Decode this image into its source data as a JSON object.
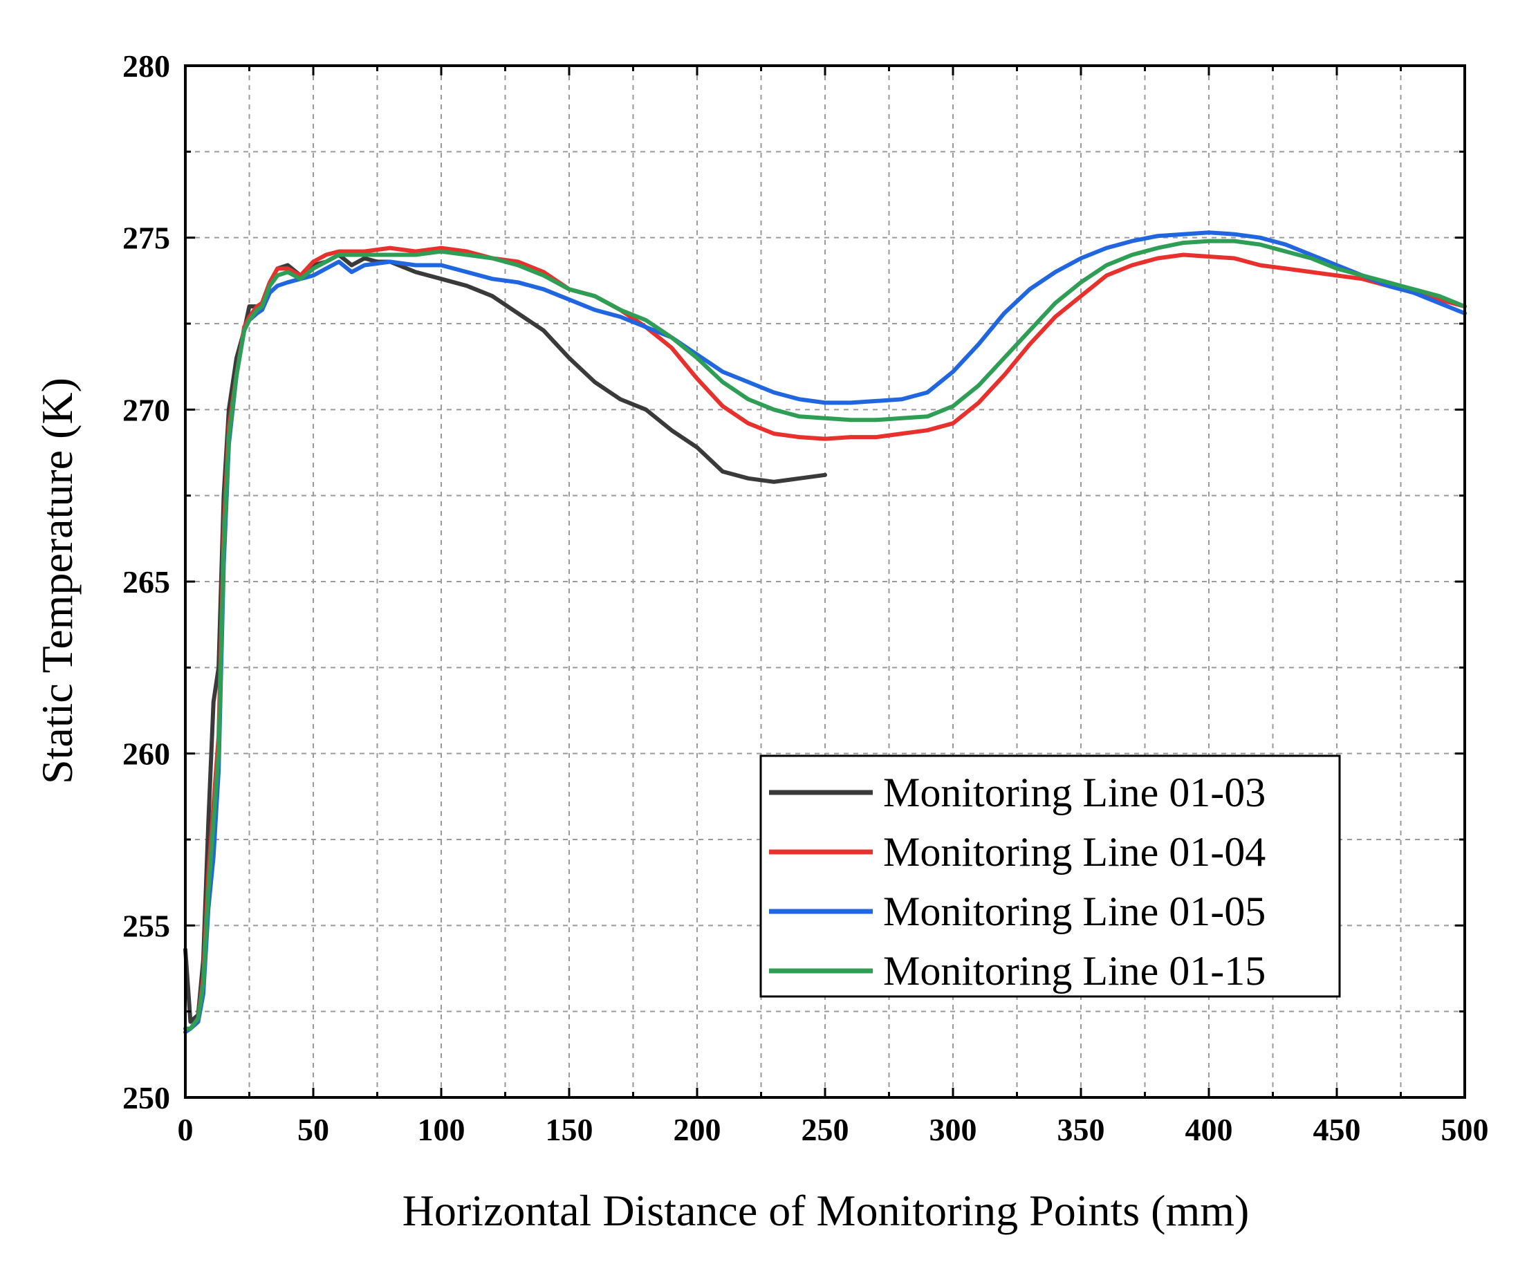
{
  "chart_data": {
    "type": "line",
    "title": "",
    "xlabel": "Horizontal Distance of Monitoring Points (mm)",
    "ylabel": "Static Temperature (K)",
    "xlim": [
      0,
      500
    ],
    "ylim": [
      250,
      280
    ],
    "xticks": [
      0,
      50,
      100,
      150,
      200,
      250,
      300,
      350,
      400,
      450,
      500
    ],
    "yticks": [
      250,
      255,
      260,
      265,
      270,
      275,
      280
    ],
    "xtick_labels": [
      "0",
      "50",
      "100",
      "150",
      "200",
      "250",
      "300",
      "350",
      "400",
      "450",
      "500"
    ],
    "ytick_labels": [
      "250",
      "255",
      "260",
      "265",
      "270",
      "275",
      "280"
    ],
    "grid": true,
    "legend_position": "lower-right",
    "series": [
      {
        "name": "Monitoring Line 01-03",
        "color": "#3a3a3a",
        "x": [
          0,
          2,
          5,
          7,
          9,
          11,
          13,
          15,
          17,
          20,
          23,
          25,
          28,
          30,
          33,
          36,
          40,
          45,
          50,
          55,
          60,
          65,
          70,
          75,
          80,
          90,
          100,
          110,
          120,
          130,
          140,
          150,
          160,
          170,
          180,
          190,
          200,
          210,
          220,
          230,
          240,
          250
        ],
        "values": [
          254.3,
          252.2,
          252.4,
          254.0,
          258.0,
          261.5,
          262.5,
          267.5,
          270.0,
          271.5,
          272.3,
          273.0,
          273.0,
          273.1,
          273.7,
          274.1,
          274.2,
          273.9,
          274.2,
          274.3,
          274.5,
          274.2,
          274.4,
          274.3,
          274.3,
          274.0,
          273.8,
          273.6,
          273.3,
          272.8,
          272.3,
          271.5,
          270.8,
          270.3,
          270.0,
          269.4,
          268.9,
          268.2,
          268.0,
          267.9,
          268.0,
          268.1
        ]
      },
      {
        "name": "Monitoring Line 01-04",
        "color": "#e8302c",
        "x": [
          0,
          2,
          5,
          7,
          9,
          11,
          13,
          15,
          17,
          20,
          23,
          25,
          28,
          30,
          33,
          36,
          40,
          45,
          50,
          55,
          60,
          70,
          80,
          90,
          100,
          110,
          120,
          130,
          140,
          150,
          160,
          170,
          180,
          190,
          200,
          210,
          220,
          230,
          240,
          250,
          260,
          270,
          280,
          290,
          300,
          310,
          320,
          330,
          340,
          350,
          360,
          370,
          380,
          390,
          400,
          410,
          420,
          430,
          440,
          450,
          460,
          470,
          480,
          490,
          500
        ],
        "values": [
          252.0,
          252.0,
          252.3,
          253.5,
          256.5,
          258.5,
          260.5,
          266.5,
          269.5,
          271.0,
          272.4,
          272.7,
          273.0,
          273.1,
          273.7,
          274.1,
          274.1,
          273.9,
          274.3,
          274.5,
          274.6,
          274.6,
          274.7,
          274.6,
          274.7,
          274.6,
          274.4,
          274.3,
          274.0,
          273.5,
          273.3,
          272.9,
          272.4,
          271.8,
          270.9,
          270.1,
          269.6,
          269.3,
          269.2,
          269.15,
          269.2,
          269.2,
          269.3,
          269.4,
          269.6,
          270.2,
          271.0,
          271.9,
          272.7,
          273.3,
          273.9,
          274.2,
          274.4,
          274.5,
          274.45,
          274.4,
          274.2,
          274.1,
          274.0,
          273.9,
          273.8,
          273.6,
          273.4,
          273.2,
          273.0
        ]
      },
      {
        "name": "Monitoring Line 01-05",
        "color": "#1f66e0",
        "x": [
          0,
          2,
          5,
          7,
          9,
          11,
          13,
          15,
          17,
          20,
          23,
          25,
          28,
          30,
          33,
          36,
          40,
          45,
          50,
          55,
          60,
          65,
          70,
          80,
          90,
          100,
          110,
          120,
          130,
          140,
          150,
          160,
          170,
          180,
          190,
          200,
          210,
          220,
          230,
          240,
          250,
          260,
          270,
          280,
          290,
          300,
          310,
          320,
          330,
          340,
          350,
          360,
          370,
          380,
          390,
          400,
          410,
          420,
          430,
          440,
          450,
          460,
          470,
          480,
          490,
          500
        ],
        "values": [
          251.9,
          252.0,
          252.2,
          253.0,
          255.5,
          257.0,
          259.5,
          265.5,
          269.0,
          271.0,
          272.3,
          272.6,
          272.8,
          272.9,
          273.4,
          273.6,
          273.7,
          273.8,
          273.9,
          274.1,
          274.3,
          274.0,
          274.2,
          274.3,
          274.2,
          274.2,
          274.0,
          273.8,
          273.7,
          273.5,
          273.2,
          272.9,
          272.7,
          272.4,
          272.1,
          271.6,
          271.1,
          270.8,
          270.5,
          270.3,
          270.2,
          270.2,
          270.25,
          270.3,
          270.5,
          271.1,
          271.9,
          272.8,
          273.5,
          274.0,
          274.4,
          274.7,
          274.9,
          275.05,
          275.1,
          275.15,
          275.1,
          275.0,
          274.8,
          274.5,
          274.2,
          273.9,
          273.6,
          273.4,
          273.1,
          272.8
        ]
      },
      {
        "name": "Monitoring Line 01-15",
        "color": "#2f9e55",
        "x": [
          0,
          2,
          5,
          7,
          9,
          11,
          13,
          15,
          17,
          20,
          23,
          25,
          28,
          30,
          33,
          36,
          40,
          45,
          50,
          55,
          60,
          70,
          80,
          90,
          100,
          110,
          120,
          130,
          140,
          150,
          160,
          170,
          180,
          190,
          200,
          210,
          220,
          230,
          240,
          250,
          260,
          270,
          280,
          290,
          300,
          310,
          320,
          330,
          340,
          350,
          360,
          370,
          380,
          390,
          400,
          410,
          420,
          430,
          440,
          450,
          460,
          470,
          480,
          490,
          500
        ],
        "values": [
          252.0,
          252.0,
          252.3,
          253.3,
          256.0,
          258.0,
          260.0,
          266.0,
          269.2,
          271.0,
          272.3,
          272.6,
          272.9,
          273.0,
          273.6,
          273.9,
          274.0,
          273.8,
          274.1,
          274.3,
          274.5,
          274.5,
          274.5,
          274.5,
          274.6,
          274.5,
          274.4,
          274.2,
          273.9,
          273.5,
          273.3,
          272.9,
          272.6,
          272.1,
          271.5,
          270.8,
          270.3,
          270.0,
          269.8,
          269.75,
          269.7,
          269.7,
          269.75,
          269.8,
          270.1,
          270.7,
          271.5,
          272.3,
          273.1,
          273.7,
          274.2,
          274.5,
          274.7,
          274.85,
          274.9,
          274.9,
          274.8,
          274.6,
          274.4,
          274.1,
          273.9,
          273.7,
          273.5,
          273.3,
          273.0
        ]
      }
    ]
  }
}
